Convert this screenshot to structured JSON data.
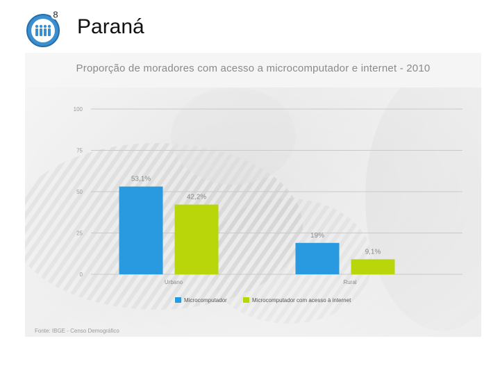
{
  "page": {
    "title": "Paraná",
    "icon_badge": "8",
    "icon": "population-group-icon",
    "background": "blurred-photo-striped-scarf"
  },
  "colors": {
    "icon_blue": "#3a8fd0",
    "micro": "#2a9ae0",
    "internet": "#b9d60a",
    "text_gray": "#8a8a8a"
  },
  "chart_data": {
    "type": "bar",
    "title": "Proporção de moradores com acesso a microcomputador e internet - 2010",
    "categories": [
      "Urbano",
      "Rural"
    ],
    "ylim": [
      0,
      100
    ],
    "yticks": [
      0,
      25,
      50,
      75,
      100
    ],
    "grid": true,
    "legend_position": "bottom",
    "series": [
      {
        "name": "Microcomputador",
        "color": "#2a9ae0",
        "values": [
          53.1,
          19
        ],
        "labels": [
          "53,1%",
          "19%"
        ]
      },
      {
        "name": "Microcomputador com acesso à internet",
        "color": "#b9d60a",
        "values": [
          42.2,
          9.1
        ],
        "labels": [
          "42,2%",
          "9,1%"
        ]
      }
    ],
    "source": "Fonte: IBGE - Censo Demográfico"
  }
}
